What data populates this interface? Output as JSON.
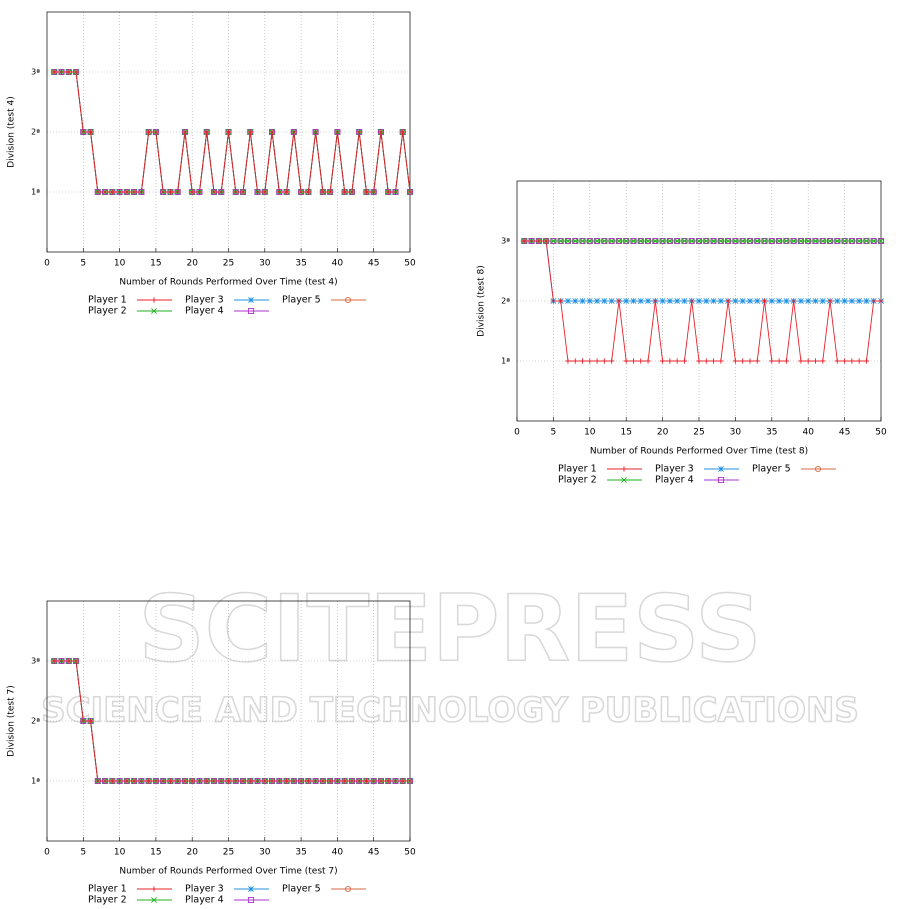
{
  "watermark": {
    "title": "SCITEPRESS",
    "subtitle": "SCIENCE AND TECHNOLOGY PUBLICATIONS"
  },
  "chart_data": [
    {
      "type": "line",
      "xlabel": "Number of Rounds Performed Over Time (test 4)",
      "ylabel": "Division (test 4)",
      "x": [
        1,
        2,
        3,
        4,
        5,
        6,
        7,
        8,
        9,
        10,
        11,
        12,
        13,
        14,
        15,
        16,
        17,
        18,
        19,
        20,
        21,
        22,
        23,
        24,
        25,
        26,
        27,
        28,
        29,
        30,
        31,
        32,
        33,
        34,
        35,
        36,
        37,
        38,
        39,
        40,
        41,
        42,
        43,
        44,
        45,
        46,
        47,
        48,
        49,
        50
      ],
      "xlim": [
        0,
        50
      ],
      "xticks": [
        0,
        5,
        10,
        15,
        20,
        25,
        30,
        35,
        40,
        45,
        50
      ],
      "ylim": [
        0,
        4
      ],
      "yticks": [
        {
          "value": 1,
          "label": "1ª"
        },
        {
          "value": 2,
          "label": "2ª"
        },
        {
          "value": 3,
          "label": "3ª"
        }
      ],
      "grid": true,
      "series": [
        {
          "name": "Player 1",
          "color": "#e8202a",
          "marker": "plus",
          "values": [
            3,
            3,
            3,
            3,
            2,
            2,
            1,
            1,
            1,
            1,
            1,
            1,
            1,
            2,
            2,
            1,
            1,
            1,
            2,
            1,
            1,
            2,
            1,
            1,
            2,
            1,
            1,
            2,
            1,
            1,
            2,
            1,
            1,
            2,
            1,
            1,
            2,
            1,
            1,
            2,
            1,
            1,
            2,
            1,
            1,
            2,
            1,
            1,
            2,
            1
          ]
        },
        {
          "name": "Player 2",
          "color": "#20b020",
          "marker": "cross",
          "values": [
            3,
            3,
            3,
            3,
            2,
            2,
            1,
            1,
            1,
            1,
            1,
            1,
            1,
            2,
            2,
            1,
            1,
            1,
            2,
            1,
            1,
            2,
            1,
            1,
            2,
            1,
            1,
            2,
            1,
            1,
            2,
            1,
            1,
            2,
            1,
            1,
            2,
            1,
            1,
            2,
            1,
            1,
            2,
            1,
            1,
            2,
            1,
            1,
            2,
            1
          ]
        },
        {
          "name": "Player 3",
          "color": "#2090e0",
          "marker": "star",
          "values": [
            3,
            3,
            3,
            3,
            2,
            2,
            1,
            1,
            1,
            1,
            1,
            1,
            1,
            2,
            2,
            1,
            1,
            1,
            2,
            1,
            1,
            2,
            1,
            1,
            2,
            1,
            1,
            2,
            1,
            1,
            2,
            1,
            1,
            2,
            1,
            1,
            2,
            1,
            1,
            2,
            1,
            1,
            2,
            1,
            1,
            2,
            1,
            1,
            2,
            1
          ]
        },
        {
          "name": "Player 4",
          "color": "#b030d0",
          "marker": "square",
          "values": [
            3,
            3,
            3,
            3,
            2,
            2,
            1,
            1,
            1,
            1,
            1,
            1,
            1,
            2,
            2,
            1,
            1,
            1,
            2,
            1,
            1,
            2,
            1,
            1,
            2,
            1,
            1,
            2,
            1,
            1,
            2,
            1,
            1,
            2,
            1,
            1,
            2,
            1,
            1,
            2,
            1,
            1,
            2,
            1,
            1,
            2,
            1,
            1,
            2,
            1
          ]
        },
        {
          "name": "Player 5",
          "color": "#d86a40",
          "marker": "circle",
          "values": [
            3,
            3,
            3,
            3,
            2,
            2,
            1,
            1,
            1,
            1,
            1,
            1,
            1,
            2,
            2,
            1,
            1,
            1,
            2,
            1,
            1,
            2,
            1,
            1,
            2,
            1,
            1,
            2,
            1,
            1,
            2,
            1,
            1,
            2,
            1,
            1,
            2,
            1,
            1,
            2,
            1,
            1,
            2,
            1,
            1,
            2,
            1,
            1,
            2,
            1
          ]
        }
      ]
    },
    {
      "type": "line",
      "xlabel": "Number of Rounds Performed Over Time (test 8)",
      "ylabel": "Division (test 8)",
      "x": [
        1,
        2,
        3,
        4,
        5,
        6,
        7,
        8,
        9,
        10,
        11,
        12,
        13,
        14,
        15,
        16,
        17,
        18,
        19,
        20,
        21,
        22,
        23,
        24,
        25,
        26,
        27,
        28,
        29,
        30,
        31,
        32,
        33,
        34,
        35,
        36,
        37,
        38,
        39,
        40,
        41,
        42,
        43,
        44,
        45,
        46,
        47,
        48,
        49,
        50
      ],
      "xlim": [
        0,
        50
      ],
      "xticks": [
        0,
        5,
        10,
        15,
        20,
        25,
        30,
        35,
        40,
        45,
        50
      ],
      "ylim": [
        0,
        4
      ],
      "yticks": [
        {
          "value": 1,
          "label": "1ª"
        },
        {
          "value": 2,
          "label": "2ª"
        },
        {
          "value": 3,
          "label": "3ª"
        }
      ],
      "grid": true,
      "series": [
        {
          "name": "Player 1",
          "color": "#e8202a",
          "marker": "plus",
          "values": [
            3,
            3,
            3,
            3,
            2,
            2,
            1,
            1,
            1,
            1,
            1,
            1,
            1,
            2,
            1,
            1,
            1,
            1,
            2,
            1,
            1,
            1,
            1,
            2,
            1,
            1,
            1,
            1,
            2,
            1,
            1,
            1,
            1,
            2,
            1,
            1,
            1,
            2,
            1,
            1,
            1,
            1,
            2,
            1,
            1,
            1,
            1,
            1,
            2,
            2
          ]
        },
        {
          "name": "Player 2",
          "color": "#20b020",
          "marker": "cross",
          "values": [
            3,
            3,
            3,
            3,
            3,
            3,
            3,
            3,
            3,
            3,
            3,
            3,
            3,
            3,
            3,
            3,
            3,
            3,
            3,
            3,
            3,
            3,
            3,
            3,
            3,
            3,
            3,
            3,
            3,
            3,
            3,
            3,
            3,
            3,
            3,
            3,
            3,
            3,
            3,
            3,
            3,
            3,
            3,
            3,
            3,
            3,
            3,
            3,
            3,
            3
          ]
        },
        {
          "name": "Player 3",
          "color": "#2090e0",
          "marker": "star",
          "values": [
            3,
            3,
            3,
            3,
            2,
            2,
            2,
            2,
            2,
            2,
            2,
            2,
            2,
            2,
            2,
            2,
            2,
            2,
            2,
            2,
            2,
            2,
            2,
            2,
            2,
            2,
            2,
            2,
            2,
            2,
            2,
            2,
            2,
            2,
            2,
            2,
            2,
            2,
            2,
            2,
            2,
            2,
            2,
            2,
            2,
            2,
            2,
            2,
            2,
            2
          ]
        },
        {
          "name": "Player 4",
          "color": "#b030d0",
          "marker": "square",
          "values": [
            3,
            3,
            3,
            3,
            3,
            3,
            3,
            3,
            3,
            3,
            3,
            3,
            3,
            3,
            3,
            3,
            3,
            3,
            3,
            3,
            3,
            3,
            3,
            3,
            3,
            3,
            3,
            3,
            3,
            3,
            3,
            3,
            3,
            3,
            3,
            3,
            3,
            3,
            3,
            3,
            3,
            3,
            3,
            3,
            3,
            3,
            3,
            3,
            3,
            3
          ]
        },
        {
          "name": "Player 5",
          "color": "#d86a40",
          "marker": "circle",
          "values": [
            3,
            3,
            3,
            3,
            3,
            3,
            3,
            3,
            3,
            3,
            3,
            3,
            3,
            3,
            3,
            3,
            3,
            3,
            3,
            3,
            3,
            3,
            3,
            3,
            3,
            3,
            3,
            3,
            3,
            3,
            3,
            3,
            3,
            3,
            3,
            3,
            3,
            3,
            3,
            3,
            3,
            3,
            3,
            3,
            3,
            3,
            3,
            3,
            3,
            3
          ]
        }
      ]
    },
    {
      "type": "line",
      "xlabel": "Number of Rounds Performed Over Time (test 7)",
      "ylabel": "Division (test 7)",
      "x": [
        1,
        2,
        3,
        4,
        5,
        6,
        7,
        8,
        9,
        10,
        11,
        12,
        13,
        14,
        15,
        16,
        17,
        18,
        19,
        20,
        21,
        22,
        23,
        24,
        25,
        26,
        27,
        28,
        29,
        30,
        31,
        32,
        33,
        34,
        35,
        36,
        37,
        38,
        39,
        40,
        41,
        42,
        43,
        44,
        45,
        46,
        47,
        48,
        49,
        50
      ],
      "xlim": [
        0,
        50
      ],
      "xticks": [
        0,
        5,
        10,
        15,
        20,
        25,
        30,
        35,
        40,
        45,
        50
      ],
      "ylim": [
        0,
        4
      ],
      "yticks": [
        {
          "value": 1,
          "label": "1ª"
        },
        {
          "value": 2,
          "label": "2ª"
        },
        {
          "value": 3,
          "label": "3ª"
        }
      ],
      "grid": true,
      "series": [
        {
          "name": "Player 1",
          "color": "#e8202a",
          "marker": "plus",
          "values": [
            3,
            3,
            3,
            3,
            2,
            2,
            1,
            1,
            1,
            1,
            1,
            1,
            1,
            1,
            1,
            1,
            1,
            1,
            1,
            1,
            1,
            1,
            1,
            1,
            1,
            1,
            1,
            1,
            1,
            1,
            1,
            1,
            1,
            1,
            1,
            1,
            1,
            1,
            1,
            1,
            1,
            1,
            1,
            1,
            1,
            1,
            1,
            1,
            1,
            1
          ]
        },
        {
          "name": "Player 2",
          "color": "#20b020",
          "marker": "cross",
          "values": [
            3,
            3,
            3,
            3,
            2,
            2,
            1,
            1,
            1,
            1,
            1,
            1,
            1,
            1,
            1,
            1,
            1,
            1,
            1,
            1,
            1,
            1,
            1,
            1,
            1,
            1,
            1,
            1,
            1,
            1,
            1,
            1,
            1,
            1,
            1,
            1,
            1,
            1,
            1,
            1,
            1,
            1,
            1,
            1,
            1,
            1,
            1,
            1,
            1,
            1
          ]
        },
        {
          "name": "Player 3",
          "color": "#2090e0",
          "marker": "star",
          "values": [
            3,
            3,
            3,
            3,
            2,
            2,
            1,
            1,
            1,
            1,
            1,
            1,
            1,
            1,
            1,
            1,
            1,
            1,
            1,
            1,
            1,
            1,
            1,
            1,
            1,
            1,
            1,
            1,
            1,
            1,
            1,
            1,
            1,
            1,
            1,
            1,
            1,
            1,
            1,
            1,
            1,
            1,
            1,
            1,
            1,
            1,
            1,
            1,
            1,
            1
          ]
        },
        {
          "name": "Player 4",
          "color": "#b030d0",
          "marker": "square",
          "values": [
            3,
            3,
            3,
            3,
            2,
            2,
            1,
            1,
            1,
            1,
            1,
            1,
            1,
            1,
            1,
            1,
            1,
            1,
            1,
            1,
            1,
            1,
            1,
            1,
            1,
            1,
            1,
            1,
            1,
            1,
            1,
            1,
            1,
            1,
            1,
            1,
            1,
            1,
            1,
            1,
            1,
            1,
            1,
            1,
            1,
            1,
            1,
            1,
            1,
            1
          ]
        },
        {
          "name": "Player 5",
          "color": "#d86a40",
          "marker": "circle",
          "values": [
            3,
            3,
            3,
            3,
            2,
            2,
            1,
            1,
            1,
            1,
            1,
            1,
            1,
            1,
            1,
            1,
            1,
            1,
            1,
            1,
            1,
            1,
            1,
            1,
            1,
            1,
            1,
            1,
            1,
            1,
            1,
            1,
            1,
            1,
            1,
            1,
            1,
            1,
            1,
            1,
            1,
            1,
            1,
            1,
            1,
            1,
            1,
            1,
            1,
            1
          ]
        }
      ]
    }
  ]
}
